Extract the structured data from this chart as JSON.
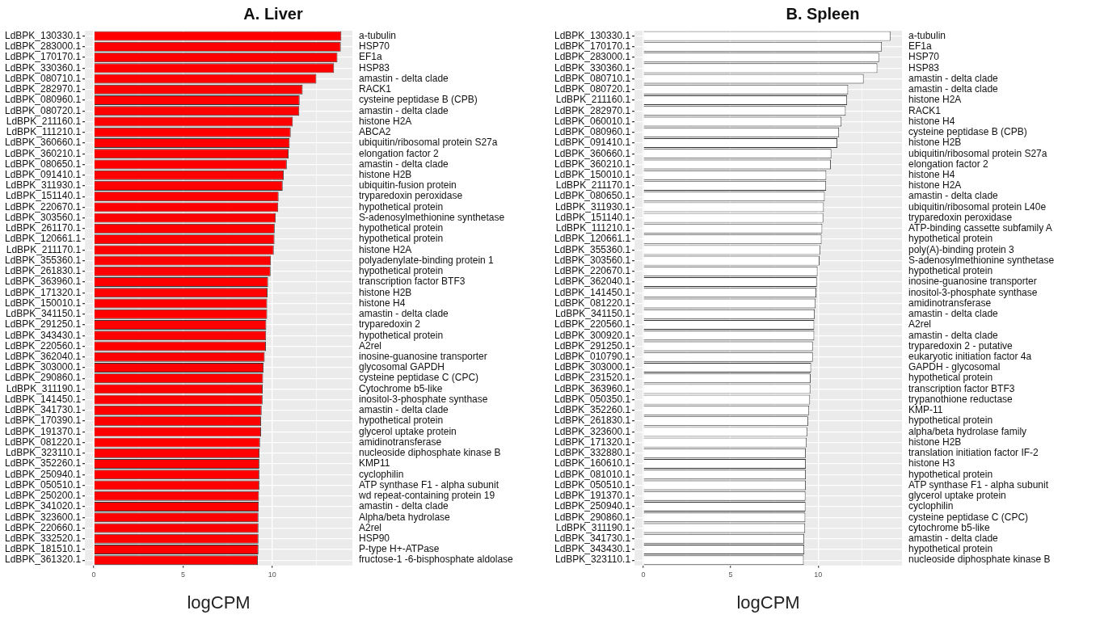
{
  "chart_data": [
    {
      "type": "bar",
      "orientation": "horizontal",
      "title": "A. Liver",
      "xlabel": "logCPM",
      "color": "#ff0000",
      "grid": true,
      "xlim": [
        -0.5,
        14.5
      ],
      "xticks": [
        0,
        {
          "value": 2.5,
          "label": null
        },
        5,
        {
          "value": 7.5,
          "label": null
        },
        10,
        {
          "value": 12.5,
          "label": null
        }
      ],
      "categories": [
        "LdBPK_130330.1",
        "LdBPK_283000.1",
        "LdBPK_170170.1",
        "LdBPK_330360.1",
        "LdBPK_080710.1",
        "LdBPK_282970.1",
        "LdBPK_080960.1",
        "LdBPK_080720.1",
        "LdBPK_211160.1",
        "LdBPK_111210.1",
        "LdBPK_360660.1",
        "LdBPK_360210.1",
        "LdBPK_080650.1",
        "LdBPK_091410.1",
        "LdBPK_311930.1",
        "LdBPK_151140.1",
        "LdBPK_220670.1",
        "LdBPK_303560.1",
        "LdBPK_261170.1",
        "LdBPK_120661.1",
        "LdBPK_211170.1",
        "LdBPK_355360.1",
        "LdBPK_261830.1",
        "LdBPK_363960.1",
        "LdBPK_171320.1",
        "LdBPK_150010.1",
        "LdBPK_341150.1",
        "LdBPK_291250.1",
        "LdBPK_343430.1",
        "LdBPK_220560.1",
        "LdBPK_362040.1",
        "LdBPK_303000.1",
        "LdBPK_290860.1",
        "LdBPK_311190.1",
        "LdBPK_141450.1",
        "LdBPK_341730.1",
        "LdBPK_170390.1",
        "LdBPK_191370.1",
        "LdBPK_081220.1",
        "LdBPK_323110.1",
        "LdBPK_352260.1",
        "LdBPK_250940.1",
        "LdBPK_050510.1",
        "LdBPK_250200.1",
        "LdBPK_341020.1",
        "LdBPK_323600.1",
        "LdBPK_220660.1",
        "LdBPK_332520.1",
        "LdBPK_181510.1",
        "LdBPK_361320.1"
      ],
      "y2_categories": [
        "a-tubulin",
        "HSP70",
        "EF1a",
        "HSP83",
        "amastin - delta clade",
        "RACK1",
        "cysteine peptidase B (CPB)",
        "amastin - delta clade",
        "histone H2A",
        "ABCA2",
        "ubiquitin/ribosomal protein S27a",
        "elongation factor 2",
        "amastin - delta clade",
        "histone H2B",
        "ubiquitin-fusion protein",
        "tryparedoxin peroxidase",
        "hypothetical protein",
        "S-adenosylmethionine synthetase",
        "hypothetical protein",
        "hypothetical protein",
        "histone H2A",
        "polyadenylate-binding protein 1",
        "hypothetical protein",
        "transcription factor BTF3",
        "histone H2B",
        "histone H4",
        "amastin - delta clade",
        "tryparedoxin 2",
        "hypothetical protein",
        "A2rel",
        "inosine-guanosine transporter",
        "glycosomal GAPDH",
        "cysteine peptidase C (CPC)",
        "Cytochrome b5-like",
        "inositol-3-phosphate synthase",
        "amastin - delta clade",
        "hypothetical protein",
        "glycerol uptake protein",
        "amidinotransferase",
        "nucleoside diphosphate kinase B",
        "KMP11",
        "cyclophilin",
        "ATP synthase F1 - alpha subunit",
        "wd repeat-containing protein 19",
        "amastin - delta clade",
        "Alpha/beta hydrolase",
        "A2rel",
        "HSP90",
        "P-type H+-ATPase",
        "fructose-1 -6-bisphosphate aldolase"
      ],
      "values": [
        13.88,
        13.85,
        13.66,
        13.47,
        12.48,
        11.71,
        11.54,
        11.52,
        11.16,
        11.04,
        10.98,
        10.92,
        10.82,
        10.65,
        10.59,
        10.36,
        10.34,
        10.2,
        10.14,
        10.13,
        10.09,
        9.93,
        9.91,
        9.77,
        9.74,
        9.72,
        9.72,
        9.67,
        9.66,
        9.65,
        9.58,
        9.52,
        9.49,
        9.47,
        9.46,
        9.41,
        9.38,
        9.38,
        9.32,
        9.29,
        9.28,
        9.28,
        9.28,
        9.26,
        9.25,
        9.23,
        9.23,
        9.23,
        9.23,
        9.2
      ]
    },
    {
      "type": "bar",
      "orientation": "horizontal",
      "title": "B. Spleen",
      "xlabel": "logCPM",
      "color": "#ffffff",
      "grid": true,
      "xlim": [
        -0.5,
        14.8
      ],
      "xticks": [
        0,
        {
          "value": 2.5,
          "label": null
        },
        5,
        {
          "value": 7.5,
          "label": null
        },
        10,
        {
          "value": 12.5,
          "label": null
        }
      ],
      "categories": [
        "LdBPK_130330.1",
        "LdBPK_170170.1",
        "LdBPK_283000.1",
        "LdBPK_330360.1",
        "LdBPK_080710.1",
        "LdBPK_080720.1",
        "LdBPK_211160.1",
        "LdBPK_282970.1",
        "LdBPK_060010.1",
        "LdBPK_080960.1",
        "LdBPK_091410.1",
        "LdBPK_360660.1",
        "LdBPK_360210.1",
        "LdBPK_150010.1",
        "LdBPK_211170.1",
        "LdBPK_080650.1",
        "LdBPK_311930.1",
        "LdBPK_151140.1",
        "LdBPK_111210.1",
        "LdBPK_120661.1",
        "LdBPK_355360.1",
        "LdBPK_303560.1",
        "LdBPK_220670.1",
        "LdBPK_362040.1",
        "LdBPK_141450.1",
        "LdBPK_081220.1",
        "LdBPK_341150.1",
        "LdBPK_220560.1",
        "LdBPK_300920.1",
        "LdBPK_291250.1",
        "LdBPK_010790.1",
        "LdBPK_303000.1",
        "LdBPK_231520.1",
        "LdBPK_363960.1",
        "LdBPK_050350.1",
        "LdBPK_352260.1",
        "LdBPK_261830.1",
        "LdBPK_323600.1",
        "LdBPK_171320.1",
        "LdBPK_332880.1",
        "LdBPK_160610.1",
        "LdBPK_081010.1",
        "LdBPK_050510.1",
        "LdBPK_191370.1",
        "LdBPK_250940.1",
        "LdBPK_290860.1",
        "LdBPK_311190.1",
        "LdBPK_341730.1",
        "LdBPK_343430.1",
        "LdBPK_323110.1"
      ],
      "y2_categories": [
        "a-tubulin",
        "EF1a",
        "HSP70",
        "HSP83",
        "amastin - delta clade",
        "amastin - delta clade",
        "histone H2A",
        "RACK1",
        "histone H4",
        "cysteine peptidase B (CPB)",
        "histone H2B",
        "ubiquitin/ribosomal protein S27a",
        "elongation factor 2",
        "histone H4",
        "histone H2A",
        "amastin - delta clade",
        "ubiquitin/ribosomal protein L40e",
        "tryparedoxin peroxidase",
        "ATP-binding cassette subfamily A",
        "hypothetical protein",
        "poly(A)-binding protein 3",
        "S-adenosylmethionine synthetase",
        "hypothetical protein",
        "inosine-guanosine transporter",
        "inositol-3-phosphate synthase",
        "amidinotransferase",
        "amastin - delta clade",
        "A2rel",
        "amastin - delta clade",
        "tryparedoxin 2 - putative",
        "eukaryotic initiation factor 4a",
        "GAPDH - glycosomal",
        "hypothetical protein",
        "transcription factor BTF3",
        "trypanothione reductase",
        "KMP-11",
        "hypothetical protein",
        "alpha/beta hydrolase family",
        "histone H2B",
        "translation initiation factor IF-2",
        "histone H3",
        "hypothetical protein",
        "ATP synthase F1 - alpha subunit",
        "glycerol uptake protein",
        "cyclophilin",
        "cysteine peptidase C (CPC)",
        "cytochrome b5-like",
        "amastin - delta clade",
        "hypothetical protein",
        "nucleoside diphosphate kinase B"
      ],
      "values": [
        14.14,
        13.65,
        13.49,
        13.39,
        12.61,
        11.72,
        11.66,
        11.58,
        11.34,
        11.2,
        11.1,
        10.76,
        10.73,
        10.47,
        10.46,
        10.38,
        10.33,
        10.3,
        10.24,
        10.2,
        10.12,
        10.08,
        9.97,
        9.93,
        9.9,
        9.86,
        9.81,
        9.78,
        9.78,
        9.7,
        9.7,
        9.6,
        9.57,
        9.56,
        9.54,
        9.49,
        9.43,
        9.38,
        9.35,
        9.3,
        9.3,
        9.3,
        9.3,
        9.28,
        9.28,
        9.27,
        9.26,
        9.21,
        9.21,
        9.18
      ]
    }
  ]
}
